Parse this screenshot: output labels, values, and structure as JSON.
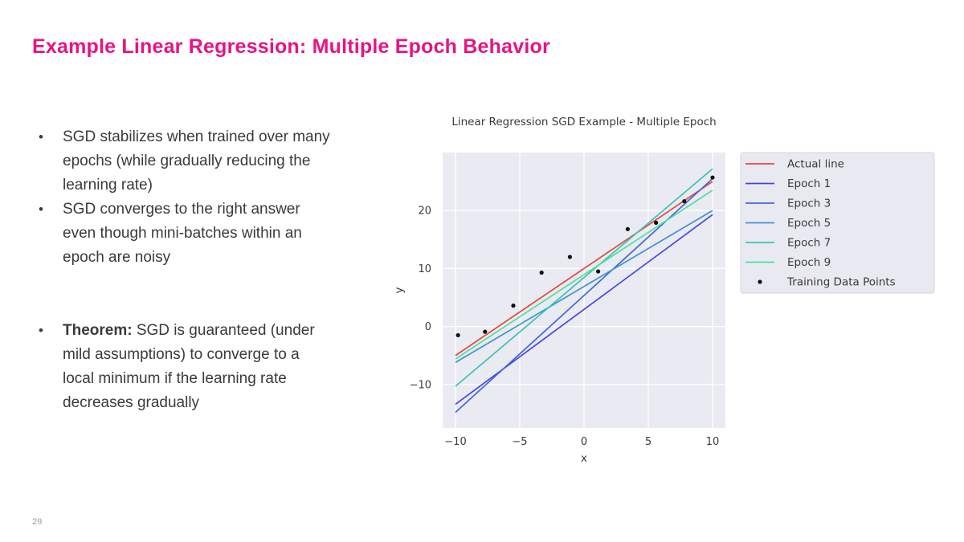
{
  "slide": {
    "title": "Example Linear Regression: Multiple Epoch Behavior",
    "page_number": "29",
    "bullets": [
      {
        "bold": "",
        "gap_before": false,
        "lines": [
          "SGD stabilizes when trained over many",
          "epochs (while gradually reducing the",
          "learning rate)"
        ]
      },
      {
        "bold": "",
        "gap_before": false,
        "lines": [
          "SGD converges to the right answer",
          "even though mini-batches within an",
          "epoch are noisy"
        ]
      },
      {
        "bold": "Theorem:",
        "gap_before": true,
        "lines": [
          "SGD is guaranteed (under",
          "mild assumptions) to converge to a",
          "local minimum if the learning rate",
          "decreases gradually"
        ]
      }
    ]
  },
  "theme": {
    "accent": "#e91383",
    "text": "#3a3a3a",
    "muted": "#9b9b9b"
  },
  "chart_data": {
    "type": "line",
    "title": "Linear Regression SGD Example - Multiple Epoch",
    "xlabel": "x",
    "ylabel": "y",
    "xlim": [
      -11,
      11
    ],
    "ylim": [
      -17.5,
      30
    ],
    "xticks": [
      -10,
      -5,
      0,
      5,
      10
    ],
    "yticks": [
      -10,
      0,
      10,
      20
    ],
    "grid": true,
    "plot_bg": "#eaeaf2",
    "grid_color": "#ffffff",
    "tick_color": "#3a3a3a",
    "legend_position": "outside-right",
    "legend_bg": "#e9e9f2",
    "legend_border": "#d4d4dd",
    "series": [
      {
        "name": "Actual line",
        "color": "#e8463f",
        "x": [
          -10,
          10
        ],
        "y": [
          -5.0,
          25.0
        ]
      },
      {
        "name": "Epoch 1",
        "color": "#4347e2",
        "x": [
          -10,
          10
        ],
        "y": [
          -13.4,
          19.3
        ]
      },
      {
        "name": "Epoch 3",
        "color": "#4168d9",
        "x": [
          -10,
          10
        ],
        "y": [
          -14.8,
          25.5
        ]
      },
      {
        "name": "Epoch 5",
        "color": "#3f93d2",
        "x": [
          -10,
          10
        ],
        "y": [
          -6.2,
          20.0
        ]
      },
      {
        "name": "Epoch 7",
        "color": "#39c3b2",
        "x": [
          -10,
          10
        ],
        "y": [
          -10.3,
          27.2
        ]
      },
      {
        "name": "Epoch 9",
        "color": "#4ce09b",
        "x": [
          -10,
          10
        ],
        "y": [
          -5.6,
          23.5
        ]
      }
    ],
    "scatter": {
      "name": "Training Data Points",
      "color": "#111111",
      "points": [
        [
          -9.8,
          -1.5
        ],
        [
          -7.7,
          -0.9
        ],
        [
          -5.5,
          3.6
        ],
        [
          -3.3,
          9.3
        ],
        [
          -1.1,
          12.0
        ],
        [
          1.1,
          9.5
        ],
        [
          3.4,
          16.8
        ],
        [
          5.6,
          17.9
        ],
        [
          7.8,
          21.6
        ],
        [
          10.0,
          25.7
        ]
      ]
    }
  }
}
